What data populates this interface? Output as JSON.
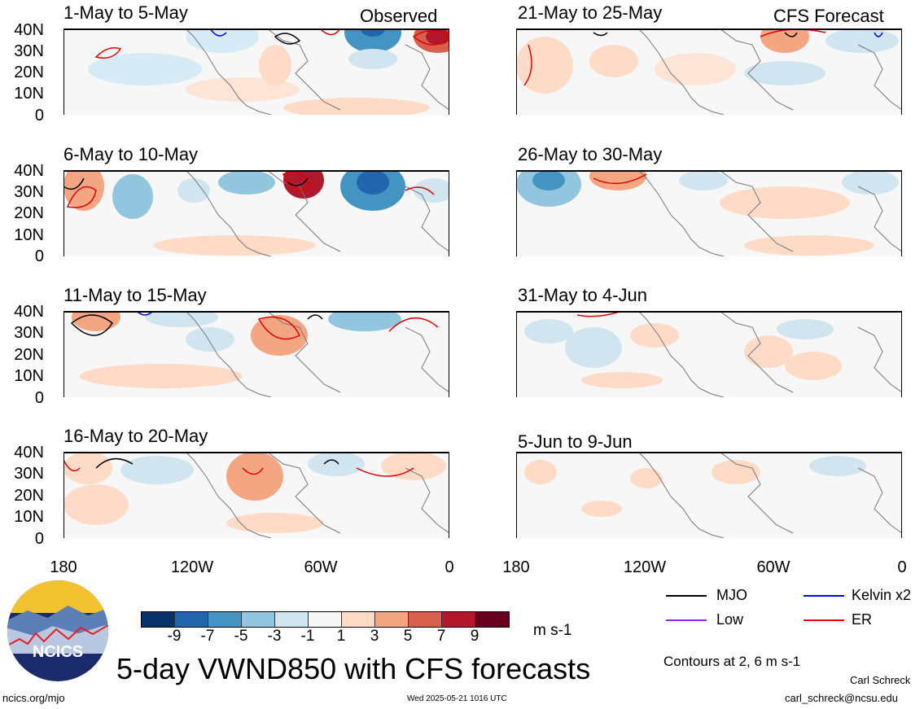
{
  "header": {
    "observed_label": "Observed",
    "forecast_label": "CFS Forecast"
  },
  "panels": [
    {
      "title": "1-May to 5-May"
    },
    {
      "title": "6-May to 10-May"
    },
    {
      "title": "11-May to 15-May"
    },
    {
      "title": "16-May to 20-May"
    },
    {
      "title": "21-May to 25-May"
    },
    {
      "title": "26-May to 30-May"
    },
    {
      "title": "31-May to 4-Jun"
    },
    {
      "title": "5-Jun to 9-Jun"
    }
  ],
  "axes": {
    "y_ticks": [
      "40N",
      "30N",
      "20N",
      "10N",
      "0"
    ],
    "x_ticks": [
      "180",
      "120W",
      "60W",
      "0"
    ]
  },
  "colorbar": {
    "labels": [
      "-9",
      "-7",
      "-5",
      "-3",
      "-1",
      "1",
      "3",
      "5",
      "7",
      "9"
    ],
    "colors": [
      "#08306b",
      "#2166ac",
      "#4393c3",
      "#92c5de",
      "#d1e5f0",
      "#f7f7f7",
      "#fddbc7",
      "#f4a582",
      "#d6604d",
      "#b2182b",
      "#67001f"
    ],
    "units": "m s-1"
  },
  "legend": {
    "items": [
      {
        "label": "MJO",
        "color": "#000000"
      },
      {
        "label": "Kelvin x2",
        "color": "#0000ff"
      },
      {
        "label": "Low",
        "color": "#a020f0"
      },
      {
        "label": "ER",
        "color": "#ff0000"
      }
    ],
    "contours_note": "Contours at 2, 6 m s-1"
  },
  "logo": {
    "text": "NCICS"
  },
  "main_title": "5-day VWND850 with CFS forecasts",
  "footer": {
    "url": "ncics.org/mjo",
    "timestamp": "Wed 2025-05-21 1016 UTC",
    "author": "Carl Schreck",
    "email": "carl_schreck@ncsu.edu"
  }
}
